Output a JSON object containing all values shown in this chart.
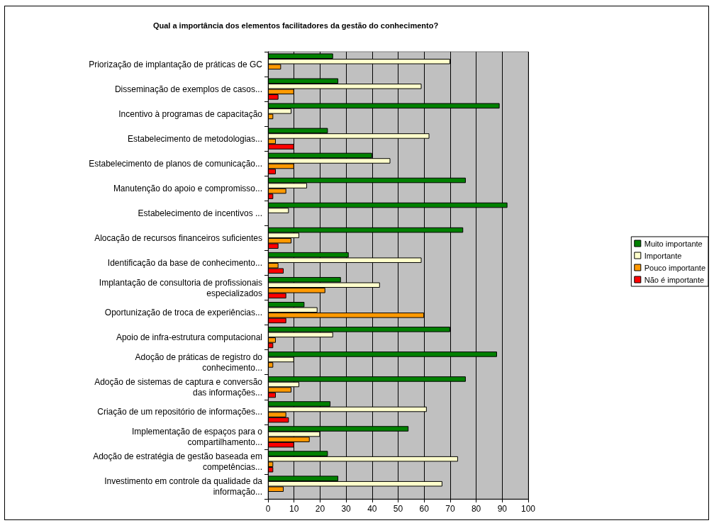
{
  "chart_data": {
    "type": "bar",
    "orientation": "horizontal",
    "title": "Qual a importância dos elementos facilitadores da gestão do conhecimento?",
    "categories": [
      "Priorização de implantação de práticas de GC",
      "Disseminação de exemplos de casos...",
      "Incentivo à programas de capacitação",
      "Estabelecimento de metodologias...",
      "Estabelecimento de planos de comunicação...",
      "Manutenção do apoio e compromisso...",
      "Estabelecimento de incentivos ...",
      "Alocação de recursos financeiros suficientes",
      "Identificação da base de conhecimento...",
      "Implantação de consultoria de profissionais\nespecializados",
      "Oportunização de troca de experiências...",
      "Apoio de infra-estrutura computacional",
      "Adoção de práticas de registro do\nconhecimento...",
      "Adoção de sistemas de captura e conversão\ndas informações...",
      "Criação de um repositório de informações...",
      "Implementação de espaços para o\ncompartilhamento...",
      "Adoção de estratégia de gestão baseada em\ncompetências...",
      "Investimento em controle da qualidade da\ninformação..."
    ],
    "series": [
      {
        "name": "Muito importante",
        "color": "#008000",
        "values": [
          25,
          27,
          89,
          23,
          40,
          76,
          92,
          75,
          31,
          28,
          14,
          70,
          88,
          76,
          24,
          54,
          23,
          27
        ]
      },
      {
        "name": "Importante",
        "color": "#ffffcc",
        "values": [
          70,
          59,
          9,
          62,
          47,
          15,
          8,
          12,
          59,
          43,
          19,
          25,
          10,
          12,
          61,
          20,
          73,
          67
        ]
      },
      {
        "name": "Pouco importante",
        "color": "#ff9900",
        "values": [
          5,
          10,
          2,
          3,
          10,
          7,
          null,
          9,
          4,
          22,
          60,
          3,
          2,
          9,
          7,
          16,
          2,
          6
        ]
      },
      {
        "name": "Não é importante",
        "color": "#ff0000",
        "values": [
          null,
          4,
          null,
          10,
          3,
          2,
          null,
          4,
          6,
          7,
          7,
          2,
          null,
          3,
          8,
          10,
          2,
          null
        ]
      }
    ],
    "xlim": [
      0,
      100
    ],
    "xticks": [
      0,
      10,
      20,
      30,
      40,
      50,
      60,
      70,
      80,
      90,
      100
    ],
    "grid": "x",
    "legend": "right"
  }
}
